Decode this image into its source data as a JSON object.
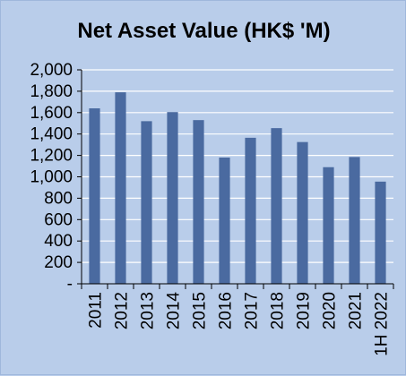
{
  "chart_data": {
    "type": "bar",
    "title": "Net Asset Value (HK$ 'M)",
    "xlabel": "",
    "ylabel": "",
    "categories": [
      "2011",
      "2012",
      "2013",
      "2014",
      "2015",
      "2016",
      "2017",
      "2018",
      "2019",
      "2020",
      "2021",
      "1H 2022"
    ],
    "values": [
      1640,
      1790,
      1520,
      1605,
      1530,
      1180,
      1365,
      1455,
      1325,
      1090,
      1185,
      955
    ],
    "ylim": [
      0,
      2000
    ],
    "yticks": [
      0,
      200,
      400,
      600,
      800,
      1000,
      1200,
      1400,
      1600,
      1800,
      2000
    ],
    "ytick_labels": [
      "-",
      "200",
      "400",
      "600",
      "800",
      "1,000",
      "1,200",
      "1,400",
      "1,600",
      "1,800",
      "2,000"
    ],
    "grid": true,
    "colors": {
      "bar": "#4a6aa0",
      "grid": "#ffffff",
      "background": "#b9cdea"
    }
  }
}
